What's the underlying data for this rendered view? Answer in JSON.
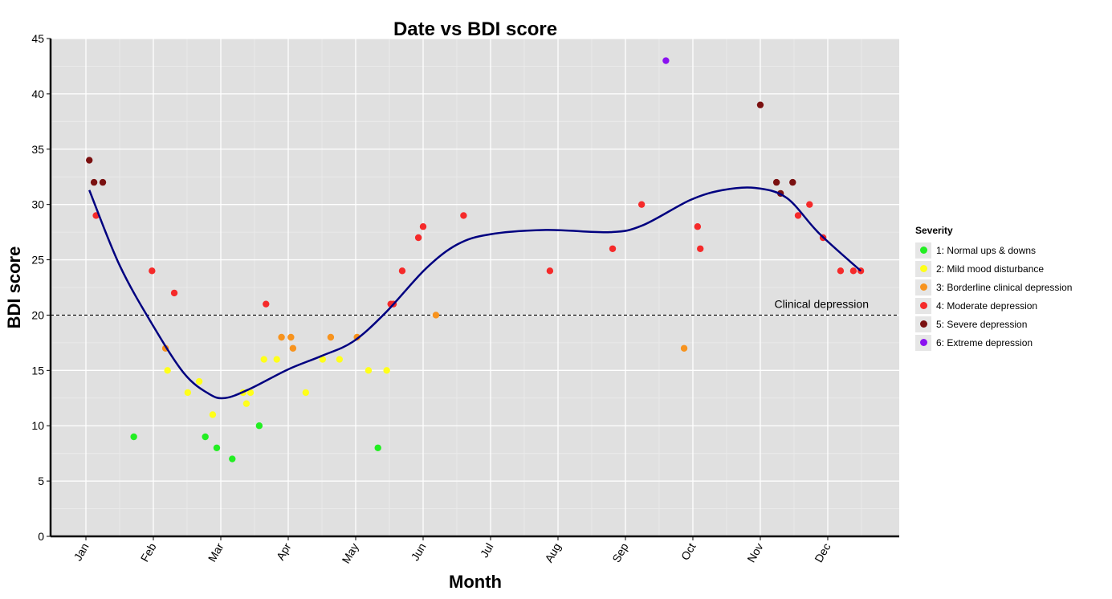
{
  "chart_data": {
    "type": "scatter",
    "title": "Date vs BDI score",
    "xlabel": "Month",
    "ylabel": "BDI score",
    "x_unit": "month (1=Jan start, fractional)",
    "xlim": [
      0.476,
      13.06
    ],
    "ylim": [
      0,
      45
    ],
    "x_ticks": [
      {
        "v": 1,
        "label": "Jan"
      },
      {
        "v": 2,
        "label": "Feb"
      },
      {
        "v": 3,
        "label": "Mar"
      },
      {
        "v": 4,
        "label": "Apr"
      },
      {
        "v": 5,
        "label": "May"
      },
      {
        "v": 6,
        "label": "Jun"
      },
      {
        "v": 7,
        "label": "Jul"
      },
      {
        "v": 8,
        "label": "Aug"
      },
      {
        "v": 9,
        "label": "Sep"
      },
      {
        "v": 10,
        "label": "Oct"
      },
      {
        "v": 11,
        "label": "Nov"
      },
      {
        "v": 12,
        "label": "Dec"
      }
    ],
    "y_ticks": [
      0,
      5,
      10,
      15,
      20,
      25,
      30,
      35,
      40,
      45
    ],
    "grid": true,
    "legend": {
      "title": "Severity",
      "placement": "right"
    },
    "series": [
      {
        "name": "1: Normal ups & downs",
        "color": "#22ee22",
        "points": [
          [
            1.71,
            9
          ],
          [
            2.77,
            9
          ],
          [
            2.94,
            8
          ],
          [
            3.17,
            7
          ],
          [
            3.57,
            10
          ],
          [
            5.33,
            8
          ]
        ]
      },
      {
        "name": "2: Mild mood disturbance",
        "color": "#ffff1a",
        "points": [
          [
            2.21,
            15
          ],
          [
            2.51,
            13
          ],
          [
            2.68,
            14
          ],
          [
            2.88,
            11
          ],
          [
            3.33,
            13
          ],
          [
            3.38,
            12
          ],
          [
            3.44,
            13
          ],
          [
            3.64,
            16
          ],
          [
            3.83,
            16
          ],
          [
            4.26,
            13
          ],
          [
            4.51,
            16
          ],
          [
            4.76,
            16
          ],
          [
            5.19,
            15
          ],
          [
            5.46,
            15
          ]
        ]
      },
      {
        "name": "3: Borderline clinical depression",
        "color": "#f7931e",
        "points": [
          [
            2.18,
            17
          ],
          [
            3.9,
            18
          ],
          [
            4.04,
            18
          ],
          [
            4.07,
            17
          ],
          [
            4.63,
            18
          ],
          [
            5.02,
            18
          ],
          [
            6.19,
            20
          ],
          [
            9.87,
            17
          ]
        ]
      },
      {
        "name": "4: Moderate depression",
        "color": "#f52a2a",
        "points": [
          [
            1.15,
            29
          ],
          [
            1.98,
            24
          ],
          [
            2.31,
            22
          ],
          [
            3.67,
            21
          ],
          [
            5.52,
            21
          ],
          [
            5.56,
            21
          ],
          [
            5.69,
            24
          ],
          [
            5.93,
            27
          ],
          [
            6.0,
            28
          ],
          [
            6.6,
            29
          ],
          [
            7.88,
            24
          ],
          [
            8.81,
            26
          ],
          [
            9.24,
            30
          ],
          [
            10.07,
            28
          ],
          [
            10.11,
            26
          ],
          [
            11.56,
            29
          ],
          [
            11.73,
            30
          ],
          [
            11.93,
            27
          ],
          [
            12.19,
            24
          ],
          [
            12.38,
            24
          ],
          [
            12.49,
            24
          ]
        ]
      },
      {
        "name": "5: Severe depression",
        "color": "#7a1010",
        "points": [
          [
            1.05,
            34
          ],
          [
            1.12,
            32
          ],
          [
            1.25,
            32
          ],
          [
            11.0,
            39
          ],
          [
            11.24,
            32
          ],
          [
            11.3,
            31
          ],
          [
            11.48,
            32
          ]
        ]
      },
      {
        "name": "6: Extreme depression",
        "color": "#8a12f0",
        "points": [
          [
            9.6,
            43
          ]
        ]
      }
    ],
    "smooth": {
      "color": "#000080",
      "points": [
        [
          1.05,
          31.3
        ],
        [
          1.5,
          24.5
        ],
        [
          2.0,
          19
        ],
        [
          2.46,
          14.7
        ],
        [
          2.82,
          12.9
        ],
        [
          3.06,
          12.5
        ],
        [
          3.42,
          13.3
        ],
        [
          4.0,
          15.1
        ],
        [
          4.49,
          16.3
        ],
        [
          4.96,
          17.6
        ],
        [
          5.44,
          20.2
        ],
        [
          6.04,
          24.2
        ],
        [
          6.51,
          26.4
        ],
        [
          6.99,
          27.3
        ],
        [
          7.82,
          27.7
        ],
        [
          8.77,
          27.5
        ],
        [
          9.25,
          28.1
        ],
        [
          9.96,
          30.4
        ],
        [
          10.44,
          31.3
        ],
        [
          10.92,
          31.5
        ],
        [
          11.39,
          30.6
        ],
        [
          11.87,
          27.4
        ],
        [
          12.49,
          24
        ]
      ]
    },
    "hline": {
      "y": 20,
      "label": "Clinical depression",
      "style": "dashed"
    }
  }
}
